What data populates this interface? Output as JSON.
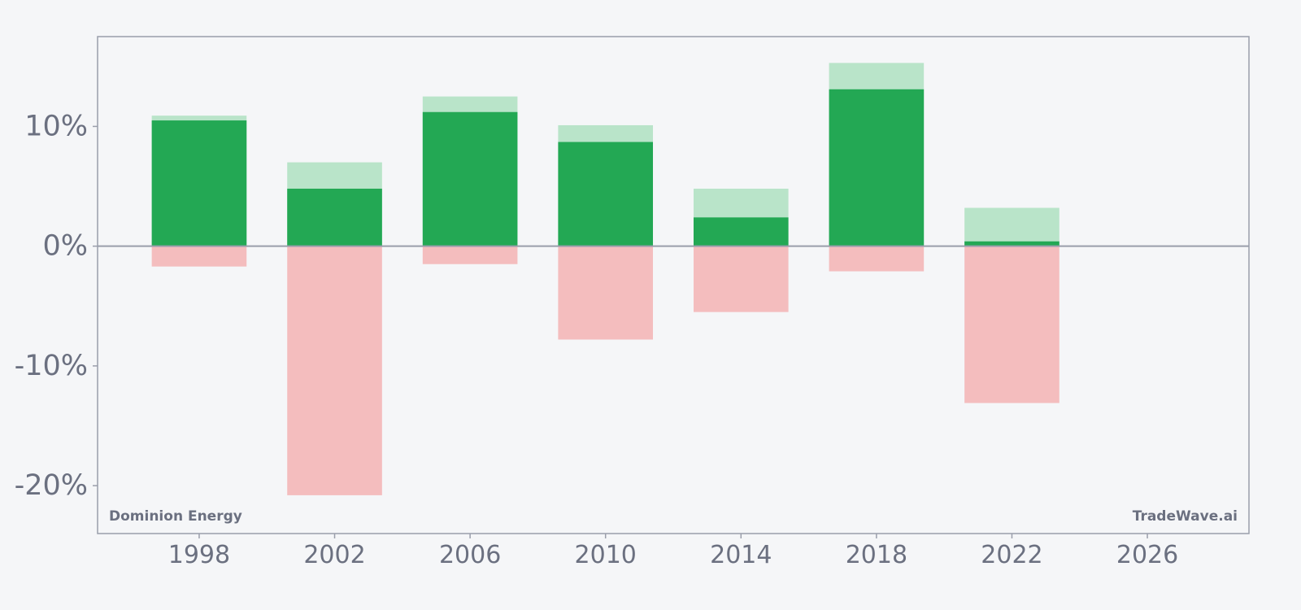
{
  "chart_data": {
    "type": "bar",
    "title": "",
    "xlabel": "",
    "ylabel": "",
    "xlim": [
      1995,
      2029
    ],
    "ylim": [
      -24,
      17.5
    ],
    "x_ticks": [
      1998,
      2002,
      2006,
      2010,
      2014,
      2018,
      2022,
      2026
    ],
    "y_ticks": [
      {
        "value": 10,
        "label": "10%"
      },
      {
        "value": 0,
        "label": "0%"
      },
      {
        "value": -10,
        "label": "-10%"
      },
      {
        "value": -20,
        "label": "-20%"
      }
    ],
    "grid": false,
    "bar_width_years": 2.8,
    "x": [
      1998,
      2002,
      2006,
      2010,
      2014,
      2018,
      2022
    ],
    "series": [
      {
        "values": [
          10.9,
          7.0,
          12.5,
          10.1,
          4.8,
          15.3,
          3.2
        ]
      },
      {
        "values": [
          10.5,
          4.8,
          11.2,
          8.7,
          2.4,
          13.1,
          0.4
        ]
      },
      {
        "values": [
          -1.7,
          -20.8,
          -1.5,
          -7.8,
          -5.5,
          -2.1,
          -13.1
        ]
      }
    ],
    "colors": {
      "series_light_green": "#b9e4c9",
      "series_green": "#23a854",
      "series_red": "#f4bdbe",
      "frame": "#9a9eab",
      "zero_line": "#9a9eab",
      "tick_text": "#6b7080",
      "background": "#f5f6f8"
    },
    "annotations": {
      "left": "Dominion Energy",
      "right": "TradeWave.ai"
    }
  }
}
